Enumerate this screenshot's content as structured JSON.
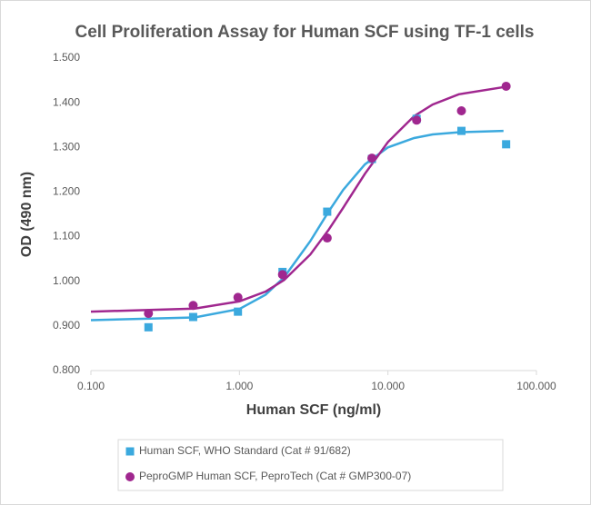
{
  "chart_data": {
    "type": "scatter",
    "title": "Cell Proliferation Assay for Human SCF using TF-1 cells",
    "x_label": "Human SCF (ng/ml)",
    "y_label": "OD (490 nm)",
    "x_scale": "log",
    "xlim": [
      0.1,
      100
    ],
    "xticks": [
      {
        "value": 0.1,
        "label": "0.100"
      },
      {
        "value": 1,
        "label": "1.000"
      },
      {
        "value": 10,
        "label": "10.000"
      },
      {
        "value": 100,
        "label": "100.000"
      }
    ],
    "ylim": [
      0.8,
      1.5
    ],
    "yticks": [
      {
        "value": 0.8,
        "label": "0.800"
      },
      {
        "value": 0.9,
        "label": "0.900"
      },
      {
        "value": 1.0,
        "label": "1.000"
      },
      {
        "value": 1.1,
        "label": "1.100"
      },
      {
        "value": 1.2,
        "label": "1.200"
      },
      {
        "value": 1.3,
        "label": "1.300"
      },
      {
        "value": 1.4,
        "label": "1.400"
      },
      {
        "value": 1.5,
        "label": "1.500"
      }
    ],
    "legend": "bottom",
    "series": [
      {
        "name": "Human SCF, WHO Standard (Cat # 91/682)",
        "color": "#3ba9de",
        "marker": "square",
        "x": [
          0.244,
          0.488,
          0.977,
          1.95,
          3.9,
          7.8,
          15.6,
          31.25,
          62.5
        ],
        "values": [
          0.897,
          0.92,
          0.932,
          1.021,
          1.156,
          1.274,
          1.364,
          1.337,
          1.307
        ]
      },
      {
        "name": "PeproGMP Human SCF, PeproTech (Cat # GMP300-07)",
        "color": "#a0278f",
        "marker": "circle",
        "x": [
          0.244,
          0.488,
          0.977,
          1.95,
          3.9,
          7.8,
          15.6,
          31.25,
          62.5
        ],
        "values": [
          0.928,
          0.946,
          0.964,
          1.015,
          1.097,
          1.276,
          1.361,
          1.382,
          1.437
        ]
      }
    ],
    "curves": [
      {
        "color": "#3ba9de",
        "x": [
          0.1,
          0.5,
          1,
          1.5,
          2,
          3,
          4,
          5,
          7,
          10,
          15,
          20,
          30,
          60
        ],
        "values": [
          0.913,
          0.919,
          0.938,
          0.97,
          1.009,
          1.09,
          1.157,
          1.205,
          1.262,
          1.3,
          1.321,
          1.329,
          1.334,
          1.337
        ]
      },
      {
        "color": "#a0278f",
        "x": [
          0.1,
          0.5,
          1,
          1.5,
          2,
          3,
          4,
          5,
          7,
          10,
          15,
          20,
          30,
          60
        ],
        "values": [
          0.932,
          0.939,
          0.955,
          0.977,
          1.003,
          1.06,
          1.116,
          1.165,
          1.241,
          1.312,
          1.37,
          1.396,
          1.419,
          1.435
        ]
      }
    ]
  }
}
